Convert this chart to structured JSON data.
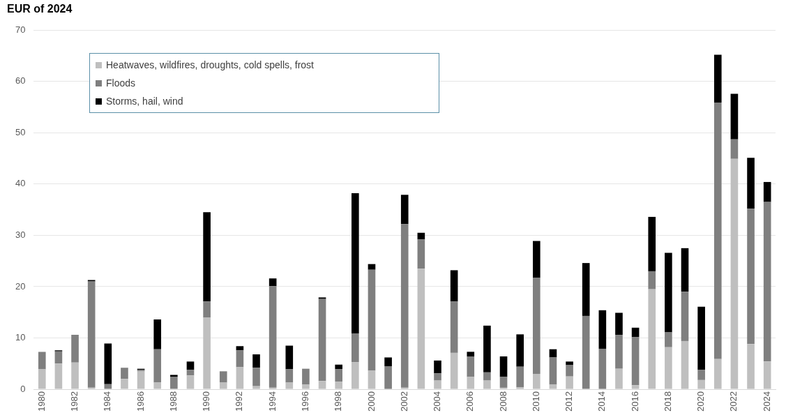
{
  "chart_data": {
    "type": "bar",
    "stacked": true,
    "title": "EUR of 2024",
    "categories": [
      "1980",
      null,
      "1982",
      null,
      "1984",
      null,
      "1986",
      null,
      "1988",
      null,
      "1990",
      null,
      "1992",
      null,
      "1994",
      null,
      "1996",
      null,
      "1998",
      null,
      "2000",
      null,
      "2002",
      null,
      "2004",
      null,
      "2006",
      null,
      "2008",
      null,
      "2010",
      null,
      "2012",
      null,
      "2014",
      null,
      "2016",
      null,
      "2018",
      null,
      "2020",
      null,
      "2022",
      null,
      "2024"
    ],
    "series": [
      {
        "name": "Heatwaves, wildfires, droughts, cold spells, frost",
        "color": "#bfbfbf",
        "values": [
          3.9,
          5.0,
          5.2,
          0.3,
          0,
          2.0,
          3.5,
          1.3,
          0,
          2.7,
          14.0,
          1.3,
          4.3,
          0.6,
          0.3,
          1.3,
          0.9,
          1.6,
          1.5,
          5.3,
          3.6,
          0,
          0.3,
          23.5,
          1.7,
          7.1,
          2.4,
          1.7,
          0.3,
          0.4,
          3.0,
          0.9,
          2.5,
          0,
          0,
          4.0,
          0.8,
          19.5,
          8.2,
          9.4,
          1.8,
          5.9,
          44.9,
          8.8,
          5.4
        ]
      },
      {
        "name": "Floods",
        "color": "#7f7f7f",
        "values": [
          3.4,
          2.4,
          5.4,
          20.7,
          1.0,
          2.2,
          0.3,
          6.5,
          2.4,
          1.1,
          3.1,
          2.2,
          3.3,
          3.6,
          19.8,
          2.6,
          3.1,
          16.0,
          2.4,
          5.6,
          19.7,
          4.5,
          31.9,
          5.7,
          1.4,
          10.0,
          4.0,
          1.6,
          2.1,
          4.0,
          18.7,
          5.3,
          2.2,
          14.3,
          7.9,
          6.6,
          9.4,
          3.5,
          2.9,
          9.6,
          2.0,
          50.0,
          3.8,
          26.4,
          31.1
        ]
      },
      {
        "name": "Storms, hail, wind",
        "color": "#000000",
        "values": [
          0,
          0.2,
          0,
          0.3,
          7.9,
          0,
          0.2,
          5.8,
          0.4,
          1.6,
          17.4,
          0,
          0.8,
          2.6,
          1.5,
          4.6,
          0,
          0.3,
          0.9,
          27.3,
          1.1,
          1.7,
          5.7,
          1.3,
          2.5,
          6.1,
          0.9,
          9.1,
          4.0,
          6.3,
          7.2,
          1.6,
          0.7,
          10.3,
          7.5,
          4.3,
          1.8,
          10.6,
          15.5,
          8.5,
          12.3,
          9.3,
          8.9,
          9.9,
          3.9
        ]
      }
    ],
    "ylim": [
      0,
      70
    ],
    "yticks": [
      0,
      10,
      20,
      30,
      40,
      50,
      60,
      70
    ],
    "grid": "y",
    "legend": "top left"
  }
}
